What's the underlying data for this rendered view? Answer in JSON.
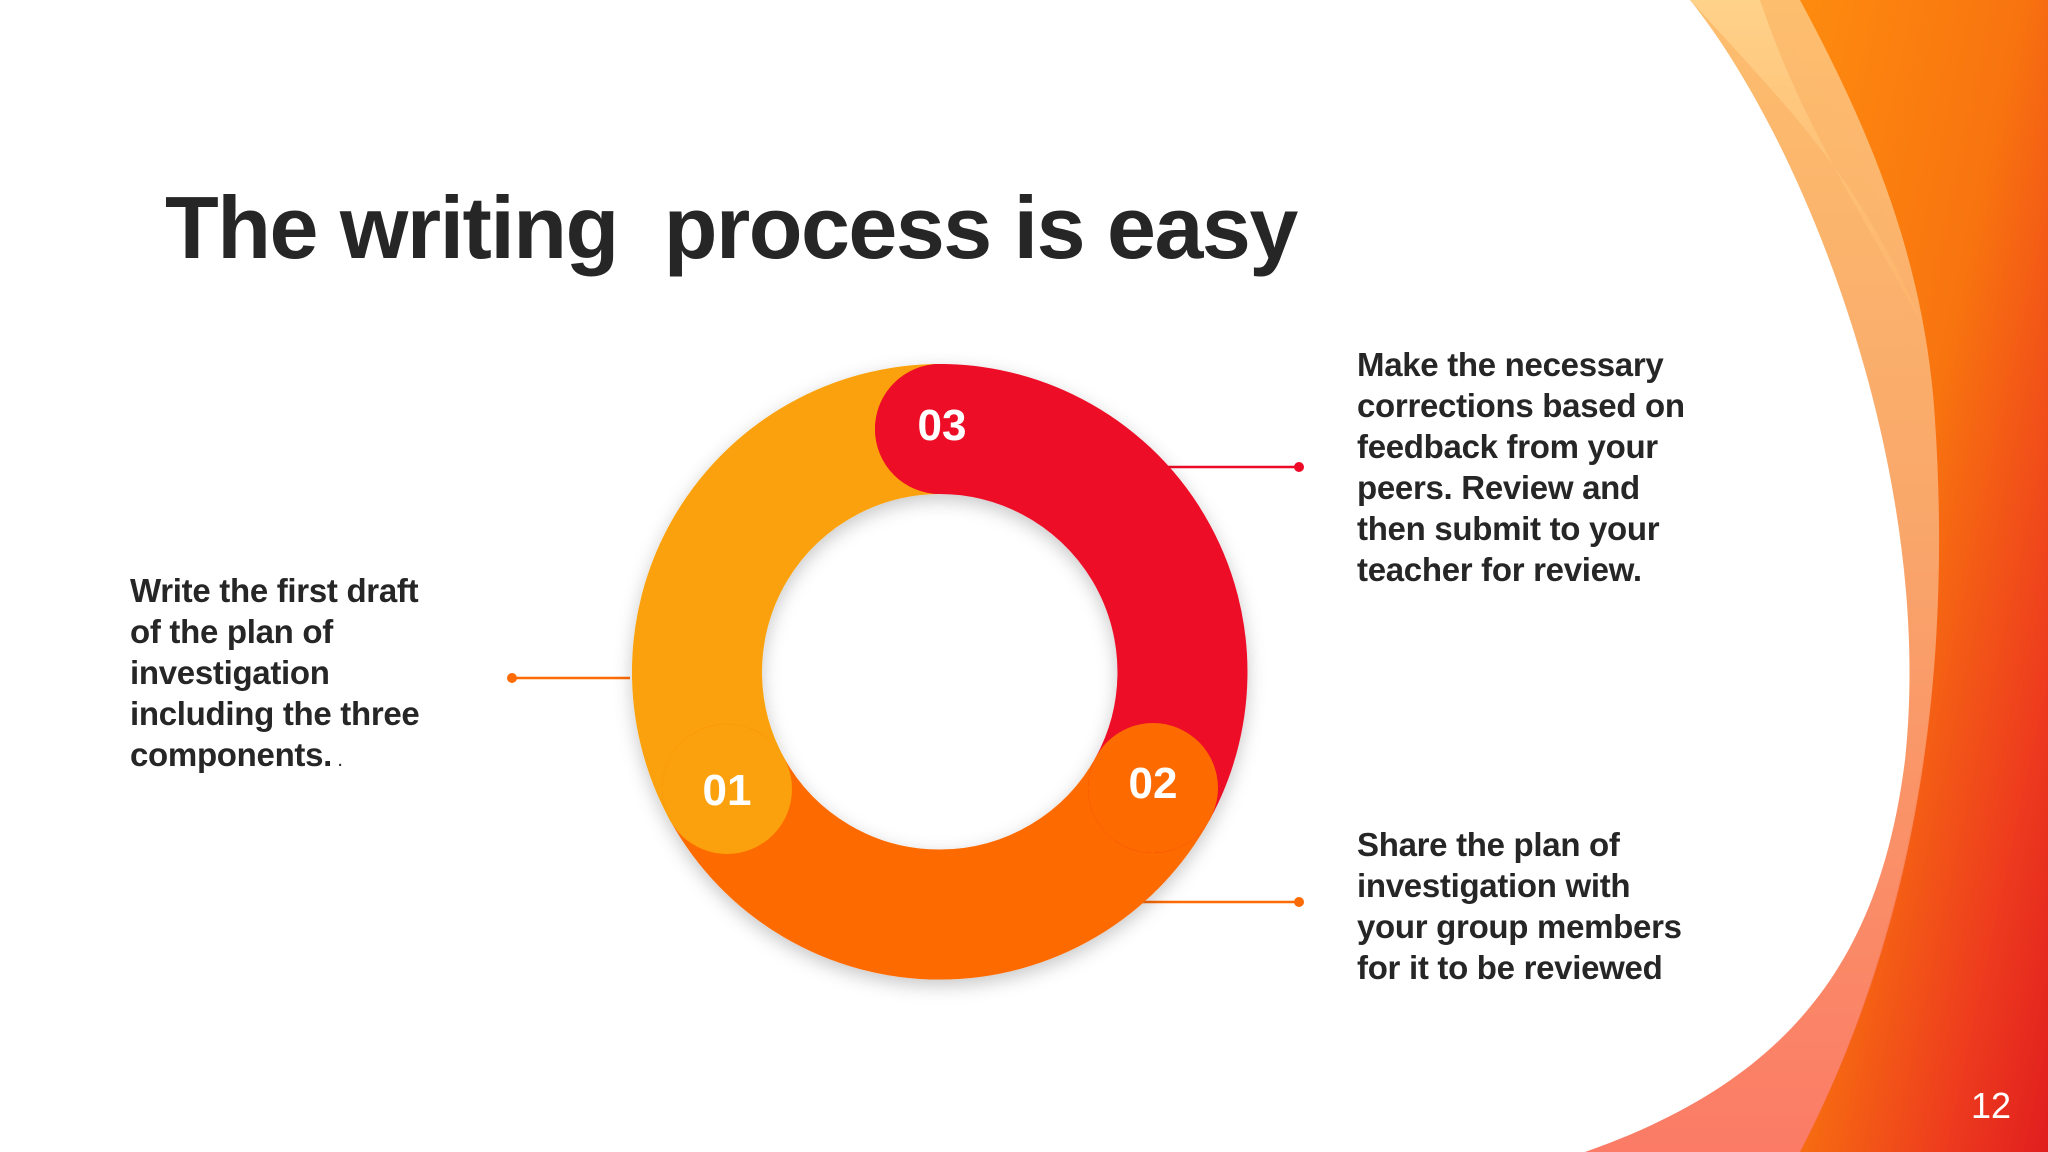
{
  "slide": {
    "title": "The writing  process is easy",
    "page_number": "12",
    "accent_colors": {
      "yellow": "#FBA107",
      "orange": "#FD6B04",
      "red": "#ED0A26"
    }
  },
  "steps": [
    {
      "number": "01",
      "text": "Write the first draft of the plan of investigation including the three components.",
      "trailing_mark": " .",
      "color": "#FBA107"
    },
    {
      "number": "02",
      "text": "Share the plan of investigation with your group members for it to be reviewed",
      "color": "#FD6B04"
    },
    {
      "number": "03",
      "text": "Make the necessary corrections based on feedback from your peers. Review and then submit to your teacher for review.",
      "color": "#ED0A26"
    }
  ]
}
